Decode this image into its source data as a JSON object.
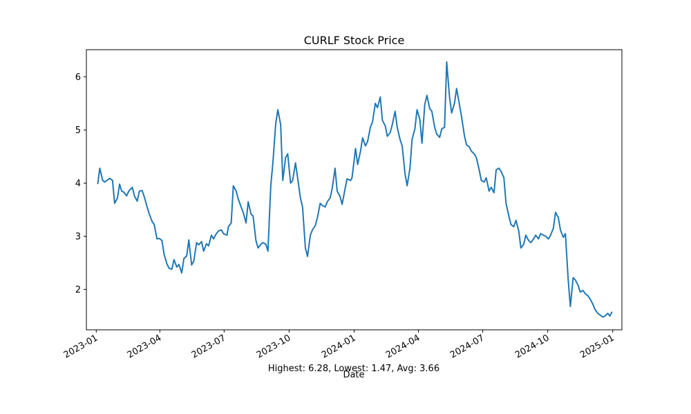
{
  "chart_data": {
    "type": "line",
    "title": "CURLF Stock Price",
    "xlabel": "Date",
    "ylabel": "",
    "footer": "Highest: 6.28, Lowest: 1.47, Avg: 3.66",
    "xlim": [
      "2022-12-18",
      "2025-01-14"
    ],
    "ylim": [
      1.24,
      6.51
    ],
    "x_ticks": [
      "2023-01-01",
      "2023-04-01",
      "2023-07-01",
      "2023-10-01",
      "2024-01-01",
      "2024-04-01",
      "2024-07-01",
      "2024-10-01",
      "2025-01-01"
    ],
    "x_tick_labels": [
      "2023-01",
      "2023-04",
      "2023-07",
      "2023-10",
      "2024-01",
      "2024-04",
      "2024-07",
      "2024-10",
      "2025-01"
    ],
    "y_ticks": [
      2,
      3,
      4,
      5,
      6
    ],
    "y_tick_labels": [
      "2",
      "3",
      "4",
      "5",
      "6"
    ],
    "grid": false,
    "line_color": "#1f77b4",
    "series": [
      {
        "x": [
          "2023-01-03",
          "2023-01-06",
          "2023-01-10",
          "2023-01-13",
          "2023-01-17",
          "2023-01-20",
          "2023-01-24",
          "2023-01-27",
          "2023-01-31",
          "2023-02-03",
          "2023-02-06",
          "2023-02-09",
          "2023-02-13",
          "2023-02-16",
          "2023-02-21",
          "2023-02-24",
          "2023-02-28",
          "2023-03-03",
          "2023-03-07",
          "2023-03-10",
          "2023-03-14",
          "2023-03-17",
          "2023-03-21",
          "2023-03-24",
          "2023-03-28",
          "2023-03-31",
          "2023-04-04",
          "2023-04-07",
          "2023-04-11",
          "2023-04-14",
          "2023-04-18",
          "2023-04-21",
          "2023-04-25",
          "2023-04-28",
          "2023-05-02",
          "2023-05-05",
          "2023-05-09",
          "2023-05-12",
          "2023-05-16",
          "2023-05-19",
          "2023-05-23",
          "2023-05-26",
          "2023-05-30",
          "2023-06-02",
          "2023-06-06",
          "2023-06-09",
          "2023-06-13",
          "2023-06-16",
          "2023-06-20",
          "2023-06-23",
          "2023-06-27",
          "2023-06-30",
          "2023-07-05",
          "2023-07-07",
          "2023-07-11",
          "2023-07-14",
          "2023-07-18",
          "2023-07-21",
          "2023-07-25",
          "2023-07-28",
          "2023-08-01",
          "2023-08-04",
          "2023-08-08",
          "2023-08-11",
          "2023-08-15",
          "2023-08-18",
          "2023-08-22",
          "2023-08-25",
          "2023-08-29",
          "2023-09-01",
          "2023-09-05",
          "2023-09-08",
          "2023-09-12",
          "2023-09-15",
          "2023-09-19",
          "2023-09-22",
          "2023-09-26",
          "2023-09-29",
          "2023-10-03",
          "2023-10-06",
          "2023-10-10",
          "2023-10-13",
          "2023-10-17",
          "2023-10-20",
          "2023-10-24",
          "2023-10-27",
          "2023-10-31",
          "2023-11-03",
          "2023-11-07",
          "2023-11-10",
          "2023-11-14",
          "2023-11-17",
          "2023-11-21",
          "2023-11-24",
          "2023-11-28",
          "2023-12-01",
          "2023-12-05",
          "2023-12-08",
          "2023-12-12",
          "2023-12-15",
          "2023-12-19",
          "2023-12-22",
          "2023-12-27",
          "2023-12-29",
          "2024-01-03",
          "2024-01-06",
          "2024-01-10",
          "2024-01-13",
          "2024-01-17",
          "2024-01-20",
          "2024-01-24",
          "2024-01-27",
          "2024-01-31",
          "2024-02-03",
          "2024-02-07",
          "2024-02-10",
          "2024-02-14",
          "2024-02-17",
          "2024-02-21",
          "2024-02-24",
          "2024-02-28",
          "2024-03-02",
          "2024-03-06",
          "2024-03-09",
          "2024-03-13",
          "2024-03-16",
          "2024-03-20",
          "2024-03-23",
          "2024-03-27",
          "2024-03-30",
          "2024-04-03",
          "2024-04-06",
          "2024-04-10",
          "2024-04-13",
          "2024-04-17",
          "2024-04-20",
          "2024-04-24",
          "2024-04-27",
          "2024-05-01",
          "2024-05-04",
          "2024-05-08",
          "2024-05-11",
          "2024-05-15",
          "2024-05-18",
          "2024-05-22",
          "2024-05-25",
          "2024-05-29",
          "2024-06-01",
          "2024-06-05",
          "2024-06-08",
          "2024-06-12",
          "2024-06-15",
          "2024-06-19",
          "2024-06-22",
          "2024-06-26",
          "2024-06-29",
          "2024-07-03",
          "2024-07-06",
          "2024-07-10",
          "2024-07-13",
          "2024-07-17",
          "2024-07-20",
          "2024-07-24",
          "2024-07-27",
          "2024-07-31",
          "2024-08-03",
          "2024-08-07",
          "2024-08-10",
          "2024-08-14",
          "2024-08-17",
          "2024-08-21",
          "2024-08-24",
          "2024-08-28",
          "2024-08-31",
          "2024-09-04",
          "2024-09-07",
          "2024-09-11",
          "2024-09-14",
          "2024-09-18",
          "2024-09-21",
          "2024-09-25",
          "2024-09-28",
          "2024-10-02",
          "2024-10-05",
          "2024-10-09",
          "2024-10-12",
          "2024-10-16",
          "2024-10-19",
          "2024-10-23",
          "2024-10-26",
          "2024-10-30",
          "2024-11-02",
          "2024-11-06",
          "2024-11-09",
          "2024-11-13",
          "2024-11-16",
          "2024-11-20",
          "2024-11-23",
          "2024-11-27",
          "2024-11-30",
          "2024-12-04",
          "2024-12-07",
          "2024-12-11",
          "2024-12-14",
          "2024-12-18",
          "2024-12-21",
          "2024-12-25",
          "2024-12-28",
          "2024-12-31"
        ],
        "y": [
          3.98,
          4.28,
          4.05,
          4.02,
          4.06,
          4.09,
          4.05,
          3.62,
          3.72,
          3.98,
          3.85,
          3.83,
          3.76,
          3.85,
          3.92,
          3.76,
          3.66,
          3.85,
          3.86,
          3.74,
          3.55,
          3.42,
          3.28,
          3.22,
          2.95,
          2.96,
          2.92,
          2.66,
          2.48,
          2.4,
          2.38,
          2.56,
          2.42,
          2.47,
          2.31,
          2.58,
          2.63,
          2.93,
          2.46,
          2.53,
          2.88,
          2.84,
          2.9,
          2.72,
          2.86,
          2.82,
          3.02,
          2.95,
          3.05,
          3.1,
          3.12,
          3.05,
          3.02,
          3.18,
          3.25,
          3.95,
          3.85,
          3.7,
          3.55,
          3.45,
          3.25,
          3.65,
          3.42,
          3.38,
          2.92,
          2.78,
          2.85,
          2.88,
          2.85,
          2.72,
          3.95,
          4.38,
          5.12,
          5.38,
          5.1,
          4.05,
          4.48,
          4.55,
          4.0,
          4.05,
          4.38,
          4.1,
          3.72,
          3.55,
          2.78,
          2.62,
          3.02,
          3.12,
          3.2,
          3.35,
          3.62,
          3.58,
          3.55,
          3.65,
          3.72,
          3.9,
          4.28,
          3.85,
          3.75,
          3.6,
          3.88,
          4.08,
          4.05,
          4.1,
          4.65,
          4.35,
          4.6,
          4.85,
          4.7,
          4.78,
          5.05,
          5.15,
          5.5,
          5.42,
          5.62,
          5.18,
          5.08,
          4.88,
          4.95,
          5.1,
          5.35,
          5.05,
          4.82,
          4.7,
          4.18,
          3.95,
          4.28,
          4.82,
          5.02,
          5.38,
          5.2,
          4.75,
          5.48,
          5.65,
          5.4,
          5.35,
          5.05,
          4.92,
          4.86,
          5.02,
          5.05,
          6.28,
          5.62,
          5.32,
          5.5,
          5.78,
          5.48,
          5.25,
          4.9,
          4.72,
          4.68,
          4.6,
          4.55,
          4.48,
          4.25,
          4.05,
          4.02,
          4.1,
          3.85,
          3.92,
          3.82,
          4.25,
          4.28,
          4.22,
          4.1,
          3.62,
          3.38,
          3.22,
          3.18,
          3.3,
          3.1,
          2.78,
          2.85,
          3.02,
          2.92,
          2.88,
          2.95,
          3.02,
          2.95,
          3.05,
          3.02,
          3.0,
          2.95,
          3.02,
          3.15,
          3.45,
          3.35,
          3.12,
          2.98,
          3.05,
          2.18,
          1.68,
          2.22,
          2.18,
          2.08,
          1.95,
          1.98,
          1.92,
          1.88,
          1.82,
          1.72,
          1.62,
          1.55,
          1.52,
          1.48,
          1.5,
          1.55,
          1.5,
          1.58
        ]
      }
    ]
  }
}
